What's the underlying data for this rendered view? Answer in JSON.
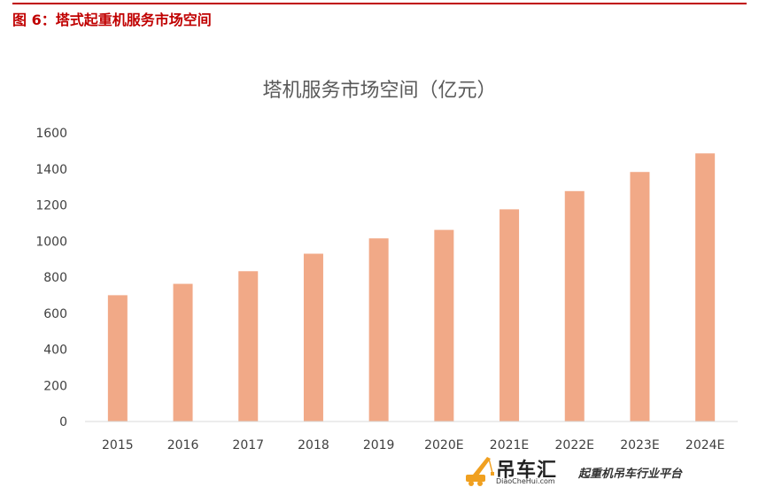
{
  "figure": {
    "caption": "图 6：塔式起重机服务市场空间"
  },
  "chart_data": {
    "type": "bar",
    "title": "塔机服务市场空间（亿元）",
    "categories": [
      "2015",
      "2016",
      "2017",
      "2018",
      "2019",
      "2020E",
      "2021E",
      "2022E",
      "2023E",
      "2024E"
    ],
    "values": [
      700,
      763,
      833,
      930,
      1015,
      1062,
      1176,
      1277,
      1383,
      1486
    ],
    "xlabel": "",
    "ylabel": "",
    "ylim": [
      0,
      1600
    ],
    "yticks": [
      0,
      200,
      400,
      600,
      800,
      1000,
      1200,
      1400,
      1600
    ],
    "grid": false,
    "legend": "none",
    "bar_color": "#f1a987",
    "axis_color": "#d9d9d9"
  },
  "watermark": {
    "name": "吊车汇",
    "url": "DiaoCheHui.com",
    "tagline": "起重机吊车行业平台",
    "icon": "crane-icon"
  }
}
